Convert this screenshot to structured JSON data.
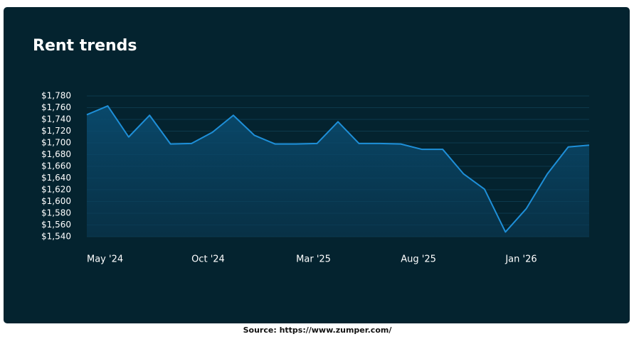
{
  "chart_data": {
    "type": "line",
    "title": "Rent trends",
    "source": "Source: https://www.zumper.com/",
    "categories": [
      "May '24",
      null,
      null,
      null,
      null,
      "Oct '24",
      null,
      null,
      null,
      null,
      "Mar '25",
      null,
      null,
      null,
      null,
      "Aug '25",
      null,
      null,
      null,
      null,
      "Jan '26",
      null,
      null,
      null,
      null
    ],
    "values": [
      1748,
      1763,
      1710,
      1747,
      1698,
      1699,
      1718,
      1747,
      1713,
      1698,
      1698,
      1699,
      1736,
      1699,
      1699,
      1698,
      1689,
      1689,
      1647,
      1621,
      1548,
      1588,
      1647,
      1693,
      1696
    ],
    "color": "#1e8fd8",
    "ylim": [
      1540,
      1780
    ],
    "yticks": [
      {
        "value": 1540,
        "label": "$1,540"
      },
      {
        "value": 1560,
        "label": "$1,560"
      },
      {
        "value": 1580,
        "label": "$1,580"
      },
      {
        "value": 1600,
        "label": "$1,600"
      },
      {
        "value": 1620,
        "label": "$1,620"
      },
      {
        "value": 1640,
        "label": "$1,640"
      },
      {
        "value": 1660,
        "label": "$1,660"
      },
      {
        "value": 1680,
        "label": "$1,680"
      },
      {
        "value": 1700,
        "label": "$1,700"
      },
      {
        "value": 1720,
        "label": "$1,720"
      },
      {
        "value": 1740,
        "label": "$1,740"
      },
      {
        "value": 1760,
        "label": "$1,760"
      },
      {
        "value": 1780,
        "label": "$1,780"
      }
    ],
    "grid": true
  }
}
